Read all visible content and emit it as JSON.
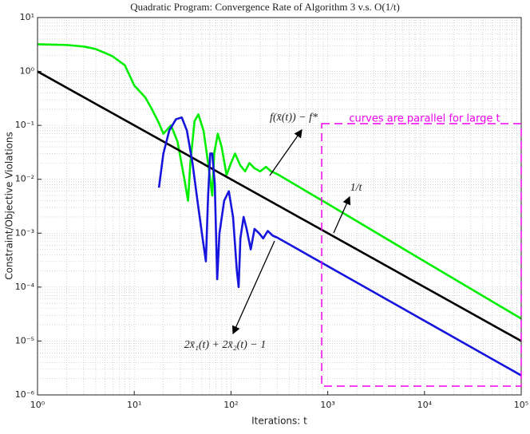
{
  "chart_data": {
    "type": "line",
    "title": "Quadratic Program: Convergence Rate of Algorithm 3 v.s. O(1/t)",
    "x_label": "Iterations: t",
    "y_label": "Constraint/Objective Violations",
    "log_x": true,
    "log_y": true,
    "grid": true,
    "minor_grid": true,
    "xlim": [
      1,
      100000
    ],
    "ylim": [
      1e-06,
      10
    ],
    "xticks": [
      {
        "value": 1,
        "label": "10⁰"
      },
      {
        "value": 10,
        "label": "10¹"
      },
      {
        "value": 100,
        "label": "10²"
      },
      {
        "value": 1000,
        "label": "10³"
      },
      {
        "value": 10000,
        "label": "10⁴"
      },
      {
        "value": 100000,
        "label": "10⁵"
      }
    ],
    "yticks": [
      {
        "value": 1e-06,
        "label": "10⁻⁶"
      },
      {
        "value": 1e-05,
        "label": "10⁻⁵"
      },
      {
        "value": 0.0001,
        "label": "10⁻⁴"
      },
      {
        "value": 0.001,
        "label": "10⁻³"
      },
      {
        "value": 0.01,
        "label": "10⁻²"
      },
      {
        "value": 0.1,
        "label": "10⁻¹"
      },
      {
        "value": 1,
        "label": "10⁰"
      },
      {
        "value": 10,
        "label": "10¹"
      }
    ],
    "series": [
      {
        "color": "#00ee00",
        "x": [
          1,
          2,
          3,
          4,
          5,
          6,
          8,
          10,
          13,
          15,
          18,
          20,
          24,
          28,
          33,
          36,
          38,
          42,
          46,
          52,
          58,
          64,
          67,
          73,
          80,
          90,
          100,
          110,
          125,
          140,
          155,
          175,
          200,
          230,
          260,
          300,
          1000,
          10000,
          100000
        ],
        "values": [
          3.2,
          3.1,
          2.9,
          2.6,
          2.2,
          1.9,
          1.3,
          0.55,
          0.33,
          0.21,
          0.11,
          0.07,
          0.1,
          0.05,
          0.01,
          0.004,
          0.02,
          0.12,
          0.16,
          0.08,
          0.02,
          0.005,
          0.03,
          0.07,
          0.04,
          0.012,
          0.02,
          0.03,
          0.018,
          0.014,
          0.02,
          0.016,
          0.014,
          0.017,
          0.014,
          0.0125,
          0.0035,
          0.0003,
          2.6e-05
        ]
      },
      {
        "color": "#000000",
        "x": [
          1,
          100000
        ],
        "values": [
          1,
          1e-05
        ]
      },
      {
        "color": "#1515dd",
        "x": [
          18,
          20,
          23,
          27,
          31,
          35,
          40,
          45,
          50,
          55,
          58,
          61,
          64,
          68,
          72,
          76,
          85,
          95,
          105,
          115,
          120,
          125,
          135,
          145,
          160,
          175,
          195,
          215,
          240,
          270,
          300,
          100000
        ],
        "values": [
          0.007,
          0.03,
          0.08,
          0.13,
          0.14,
          0.08,
          0.02,
          0.004,
          0.001,
          0.0003,
          0.005,
          0.03,
          0.03,
          0.008,
          0.00014,
          0.001,
          0.004,
          0.006,
          0.002,
          0.0002,
          0.0001,
          0.0008,
          0.002,
          0.0012,
          0.0005,
          0.0012,
          0.001,
          0.0008,
          0.0011,
          0.0009,
          0.00083,
          2.3e-06
        ]
      }
    ],
    "annotations": [
      "f(x̄(t)) − f*",
      "1/t",
      "2x̄₁(t) + 2x̄₂(t) − 1",
      "curves are parallel for large t"
    ]
  }
}
